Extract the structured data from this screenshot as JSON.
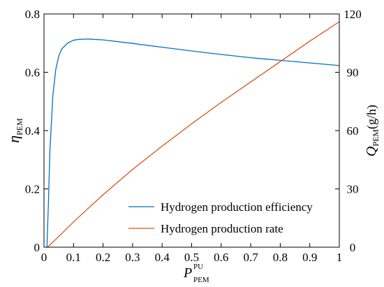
{
  "chart_data": {
    "type": "line",
    "x_axis": {
      "label_main": "P",
      "label_sub": "PEM",
      "label_sup": "PU",
      "range": [
        0,
        1
      ],
      "ticks": [
        0,
        0.1,
        0.2,
        0.3,
        0.4,
        0.5,
        0.6,
        0.7,
        0.8,
        0.9,
        1
      ],
      "tick_labels": [
        "0",
        "0.1",
        "0.2",
        "0.3",
        "0.4",
        "0.5",
        "0.6",
        "0.7",
        "0.8",
        "0.9",
        "1"
      ]
    },
    "y_left": {
      "label_main": "η",
      "label_sub": "PEM",
      "range": [
        0,
        0.8
      ],
      "ticks": [
        0,
        0.2,
        0.4,
        0.6,
        0.8
      ],
      "tick_labels": [
        "0",
        "0.2",
        "0.4",
        "0.6",
        "0.8"
      ]
    },
    "y_right": {
      "label_main": "Q",
      "label_sub": "PEM",
      "label_unit": "(g/h)",
      "range": [
        0,
        120
      ],
      "ticks": [
        0,
        30,
        60,
        90,
        120
      ],
      "tick_labels": [
        "0",
        "30",
        "60",
        "90",
        "120"
      ]
    },
    "grid": false,
    "legend_position": "bottom-right",
    "series": [
      {
        "name": "Hydrogen production efficiency",
        "axis": "left",
        "color": "#0072BD",
        "x": [
          0.01,
          0.015,
          0.02,
          0.03,
          0.04,
          0.05,
          0.06,
          0.08,
          0.1,
          0.12,
          0.15,
          0.2,
          0.3,
          0.4,
          0.5,
          0.6,
          0.7,
          0.8,
          0.9,
          1.0
        ],
        "y": [
          0.0,
          0.15,
          0.33,
          0.52,
          0.61,
          0.655,
          0.68,
          0.7,
          0.71,
          0.713,
          0.714,
          0.711,
          0.699,
          0.686,
          0.673,
          0.661,
          0.65,
          0.641,
          0.632,
          0.623
        ]
      },
      {
        "name": "Hydrogen production rate",
        "axis": "right",
        "color": "#D95319",
        "x": [
          0.012,
          0.05,
          0.1,
          0.15,
          0.2,
          0.3,
          0.4,
          0.5,
          0.6,
          0.7,
          0.8,
          0.9,
          1.0
        ],
        "y": [
          0,
          5.5,
          13,
          20,
          27,
          40,
          52,
          63.5,
          74.5,
          85,
          95.5,
          106,
          116
        ]
      }
    ]
  }
}
